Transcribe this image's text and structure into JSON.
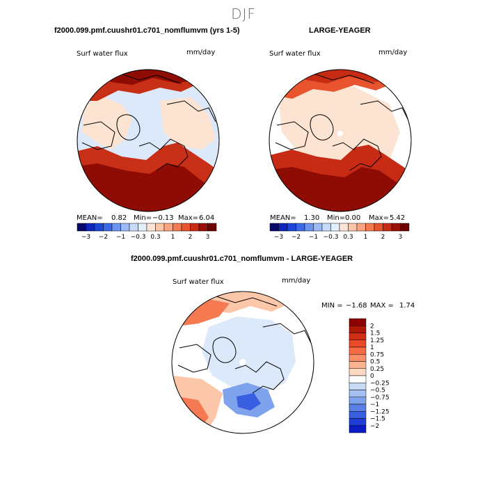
{
  "figure": {
    "title": "DJF"
  },
  "panels": [
    {
      "title": "f2000.099.pmf.cuushr01.c701_nomflumvm (yrs 1-5)",
      "variable": "Surf water flux",
      "units": "mm/day",
      "stats": {
        "mean_label": "MEAN=",
        "mean": "0.82",
        "min_label": "Min=",
        "min": "−0.13",
        "max_label": "Max=",
        "max": "6.04"
      }
    },
    {
      "title": "LARGE-YEAGER",
      "variable": "Surf water flux",
      "units": "mm/day",
      "stats": {
        "mean_label": "MEAN=",
        "mean": "1.30",
        "min_label": "Min=",
        "min": "0.00",
        "max_label": "Max=",
        "max": "5.42"
      }
    },
    {
      "title": "f2000.099.pmf.cuushr01.c701_nomflumvm - LARGE-YEAGER",
      "variable": "Surf water flux",
      "units": "mm/day",
      "stats": {
        "min_label": "MIN =",
        "min": "−1.68",
        "max_label": "MAX =",
        "max": "1.74"
      }
    }
  ],
  "chart_data": [
    {
      "type": "heatmap",
      "projection": "north-polar-stereographic",
      "title": "f2000.099.pmf.cuushr01.c701_nomflumvm (yrs 1-5)",
      "variable": "Surf water flux",
      "units": "mm/day",
      "mean": 0.82,
      "min": -0.13,
      "max": 6.04,
      "colorbar": {
        "orientation": "horizontal",
        "tick_labels": [
          "−3",
          "−2",
          "−1",
          "−0.3",
          "0.3",
          "1",
          "2",
          "3"
        ],
        "levels": [
          -3,
          -2.5,
          -2,
          -1.5,
          -1,
          -0.5,
          -0.3,
          0,
          0.3,
          0.5,
          1,
          1.5,
          2,
          2.5,
          3
        ],
        "colors": [
          "#08086b",
          "#0d25b8",
          "#1b46d6",
          "#3c6ae6",
          "#6b94f0",
          "#9bbaf6",
          "#c7dafb",
          "#e4effd",
          "#fde5d7",
          "#fcc6a8",
          "#fba47f",
          "#f57a52",
          "#e8542e",
          "#c72b14",
          "#990e05",
          "#6e0000"
        ]
      }
    },
    {
      "type": "heatmap",
      "projection": "north-polar-stereographic",
      "title": "LARGE-YEAGER",
      "variable": "Surf water flux",
      "units": "mm/day",
      "mean": 1.3,
      "min": 0.0,
      "max": 5.42,
      "colorbar": {
        "orientation": "horizontal",
        "tick_labels": [
          "−3",
          "−2",
          "−1",
          "−0.3",
          "0.3",
          "1",
          "2",
          "3"
        ],
        "levels": [
          -3,
          -2.5,
          -2,
          -1.5,
          -1,
          -0.5,
          -0.3,
          0,
          0.3,
          0.5,
          1,
          1.5,
          2,
          2.5,
          3
        ],
        "colors": [
          "#08086b",
          "#0d25b8",
          "#1b46d6",
          "#3c6ae6",
          "#6b94f0",
          "#9bbaf6",
          "#c7dafb",
          "#e4effd",
          "#fde5d7",
          "#fcc6a8",
          "#fba47f",
          "#f57a52",
          "#e8542e",
          "#c72b14",
          "#990e05",
          "#6e0000"
        ]
      }
    },
    {
      "type": "heatmap",
      "projection": "north-polar-stereographic",
      "title": "f2000.099.pmf.cuushr01.c701_nomflumvm - LARGE-YEAGER",
      "variable": "Surf water flux",
      "units": "mm/day",
      "min": -1.68,
      "max": 1.74,
      "colorbar": {
        "orientation": "vertical",
        "tick_labels": [
          "2",
          "1.5",
          "1.25",
          "1",
          "0.75",
          "0.5",
          "0.25",
          "0",
          "−0.25",
          "−0.5",
          "−0.75",
          "−1",
          "−1.25",
          "−1.5",
          "−2"
        ],
        "colors_top_to_bottom": [
          "#8b0000",
          "#b01806",
          "#d12f14",
          "#ea4a26",
          "#f56b44",
          "#fa8f68",
          "#fcb592",
          "#fdd9c2",
          "#ffffff",
          "#c8dcf8",
          "#a4c1f2",
          "#7ea2ec",
          "#5a80e6",
          "#3a5ee0",
          "#1f3ed6",
          "#0a1cc4"
        ]
      }
    }
  ],
  "colors": {
    "land_outline": "#000000",
    "circle_outline": "#000000",
    "title_gray": "#666666"
  }
}
